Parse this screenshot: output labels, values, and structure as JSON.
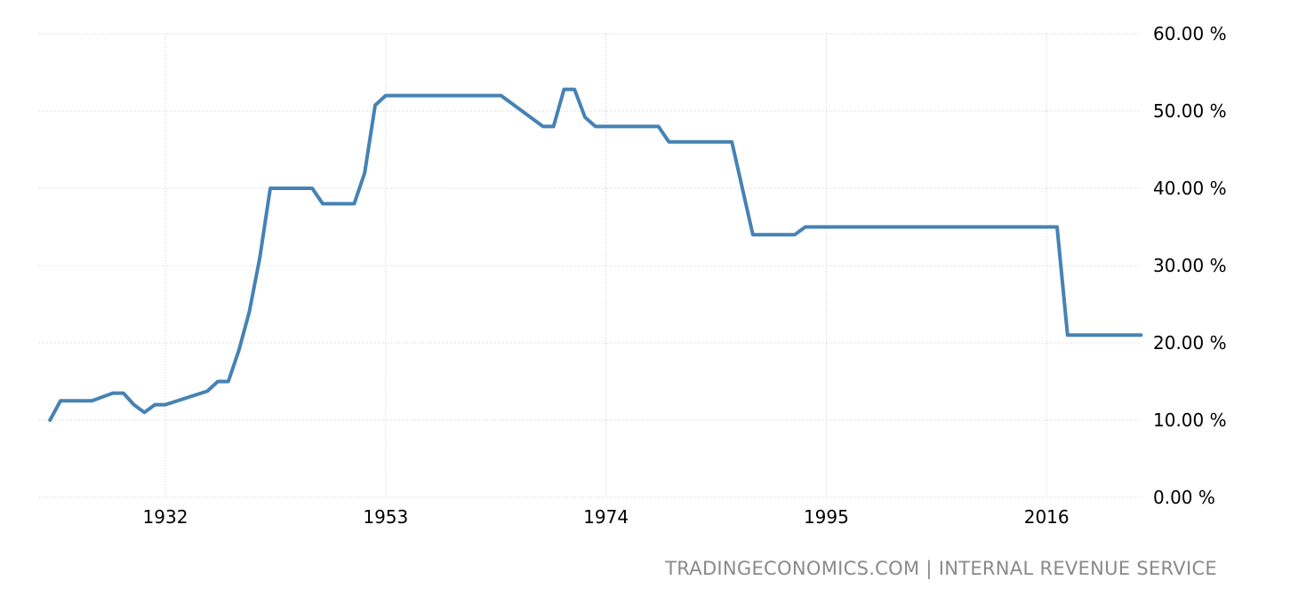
{
  "chart_data": {
    "type": "line",
    "title": "",
    "xlabel": "",
    "ylabel": "",
    "ylim": [
      0,
      60
    ],
    "xlim": [
      1921,
      2030
    ],
    "grid": true,
    "y_ticks": [
      0,
      10,
      20,
      30,
      40,
      50,
      60
    ],
    "y_tick_labels": [
      "0.00 %",
      "10.00 %",
      "20.00 %",
      "30.00 %",
      "40.00 %",
      "50.00 %",
      "60.00 %"
    ],
    "x_ticks": [
      1932,
      1953,
      1974,
      1995,
      2016
    ],
    "x_tick_labels": [
      "1932",
      "1953",
      "1974",
      "1995",
      "2016"
    ],
    "series": [
      {
        "color": "#4682b4",
        "x": [
          1921,
          1922,
          1925,
          1926,
          1927,
          1928,
          1929,
          1930,
          1931,
          1932,
          1936,
          1937,
          1938,
          1939,
          1940,
          1941,
          1942,
          1946,
          1947,
          1950,
          1951,
          1952,
          1953,
          1964,
          1968,
          1969,
          1970,
          1971,
          1972,
          1973,
          1979,
          1980,
          1986,
          1988,
          1992,
          1993,
          2017,
          2018,
          2025
        ],
        "y": [
          10,
          12.5,
          12.5,
          13,
          13.5,
          13.5,
          12,
          11,
          12,
          12,
          13.75,
          15,
          15,
          19,
          24,
          31,
          40,
          40,
          38,
          38,
          42,
          50.75,
          52,
          52,
          48,
          48,
          52.8,
          52.8,
          49.2,
          48,
          48,
          46,
          46,
          34,
          34,
          35,
          35,
          21,
          21
        ]
      }
    ]
  },
  "footer": {
    "source": "TRADINGECONOMICS.COM  |  INTERNAL REVENUE SERVICE"
  }
}
